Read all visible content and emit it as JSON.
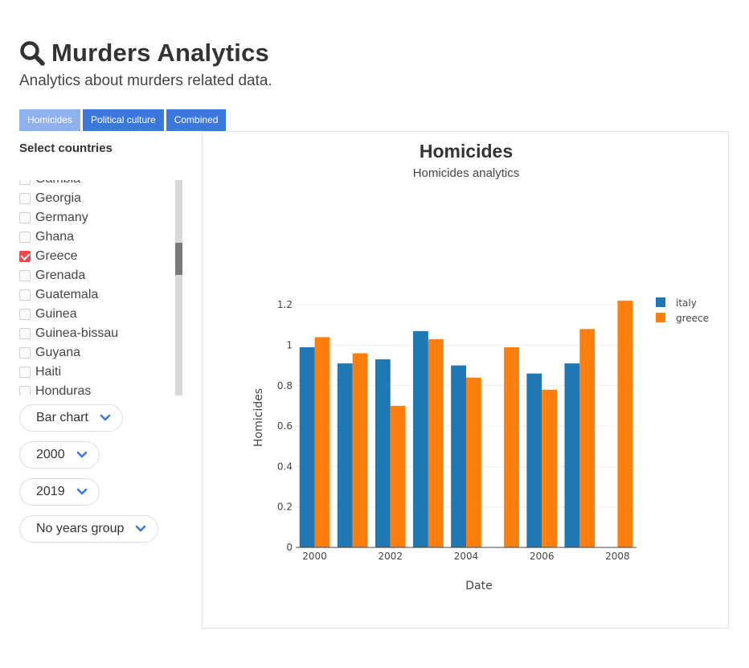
{
  "header": {
    "title": "Murders Analytics",
    "subtitle": "Analytics about murders related data.",
    "icon": "search-icon"
  },
  "tabs": [
    {
      "label": "Homicides",
      "active": true
    },
    {
      "label": "Political culture",
      "active": false
    },
    {
      "label": "Combined",
      "active": false
    }
  ],
  "sidebar": {
    "heading": "Select countries",
    "countries": [
      {
        "label": "Gambia",
        "checked": false
      },
      {
        "label": "Georgia",
        "checked": false
      },
      {
        "label": "Germany",
        "checked": false
      },
      {
        "label": "Ghana",
        "checked": false
      },
      {
        "label": "Greece",
        "checked": true
      },
      {
        "label": "Grenada",
        "checked": false
      },
      {
        "label": "Guatemala",
        "checked": false
      },
      {
        "label": "Guinea",
        "checked": false
      },
      {
        "label": "Guinea-bissau",
        "checked": false
      },
      {
        "label": "Guyana",
        "checked": false
      },
      {
        "label": "Haiti",
        "checked": false
      },
      {
        "label": "Honduras",
        "checked": false
      }
    ],
    "selects": {
      "chart_type": "Bar chart",
      "year_from": "2000",
      "year_to": "2019",
      "years_group": "No years group"
    }
  },
  "colors": {
    "italy": "#1f77b4",
    "greece": "#ff7f0e",
    "tab_active": "#8fb2ec",
    "tab_normal": "#3b78dc",
    "checked": "#e94b4b"
  },
  "chart_data": {
    "type": "bar",
    "title": "Homicides",
    "subtitle": "Homicides analytics",
    "xlabel": "Date",
    "ylabel": "Homicides",
    "x": [
      2000,
      2001,
      2002,
      2003,
      2004,
      2005,
      2006,
      2007,
      2008
    ],
    "x_ticks": [
      "2000",
      "2002",
      "2004",
      "2006",
      "2008"
    ],
    "y_ticks": [
      "0",
      "0.2",
      "0.4",
      "0.6",
      "0.8",
      "1",
      "1.2"
    ],
    "ylim": [
      0,
      1.3
    ],
    "grid": true,
    "legend_position": "top-right",
    "series": [
      {
        "name": "italy",
        "values": [
          0.99,
          0.91,
          0.93,
          1.07,
          0.9,
          null,
          0.86,
          0.91,
          null
        ]
      },
      {
        "name": "greece",
        "values": [
          1.04,
          0.96,
          0.7,
          1.03,
          0.84,
          0.99,
          0.78,
          1.08,
          1.22
        ]
      }
    ]
  }
}
